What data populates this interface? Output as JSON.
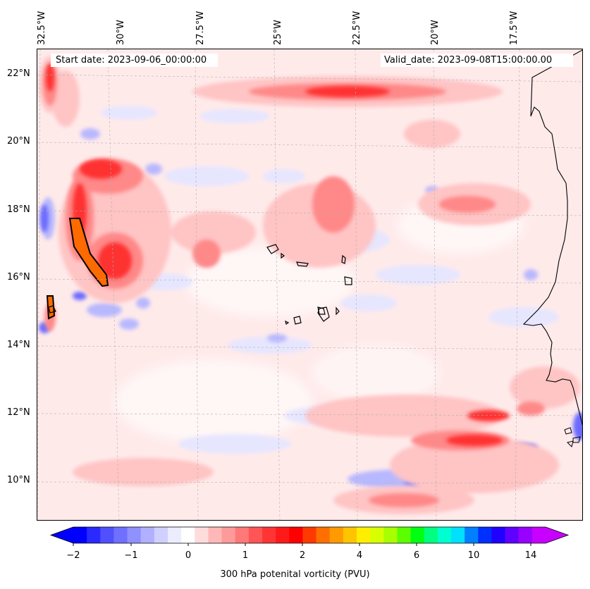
{
  "header": {
    "start_date": "Start date: 2023-09-06_00:00:00",
    "valid_date": "Valid_date: 2023-09-08T15:00:00.00"
  },
  "longitude_labels": [
    "32.5°W",
    "30°W",
    "27.5°W",
    "25°W",
    "22.5°W",
    "20°W",
    "17.5°W"
  ],
  "latitude_labels": [
    "22°N",
    "20°N",
    "18°N",
    "16°N",
    "14°N",
    "12°N",
    "10°N"
  ],
  "colorbar": {
    "label": "300 hPa potenital vorticity (PVU)",
    "tick_labels": [
      "−2",
      "−1",
      "0",
      "1",
      "2",
      "4",
      "6",
      "10",
      "14"
    ],
    "colors": [
      "#0000ff",
      "#2a2aff",
      "#5050ff",
      "#7070ff",
      "#9090ff",
      "#b0b0ff",
      "#d0d0ff",
      "#ececff",
      "#ffffff",
      "#ffdcdc",
      "#ffb8b8",
      "#ff9a9a",
      "#ff7878",
      "#ff5555",
      "#ff3535",
      "#ff1a1a",
      "#ff0000",
      "#ff3a00",
      "#ff6f00",
      "#ff9a00",
      "#ffc400",
      "#ffee00",
      "#d8ff00",
      "#a8ff00",
      "#5cff00",
      "#00ff10",
      "#00ff80",
      "#00ffd0",
      "#00e0ff",
      "#0080ff",
      "#0030ff",
      "#2000ff",
      "#6000ff",
      "#9800ff",
      "#c800ff"
    ]
  }
}
